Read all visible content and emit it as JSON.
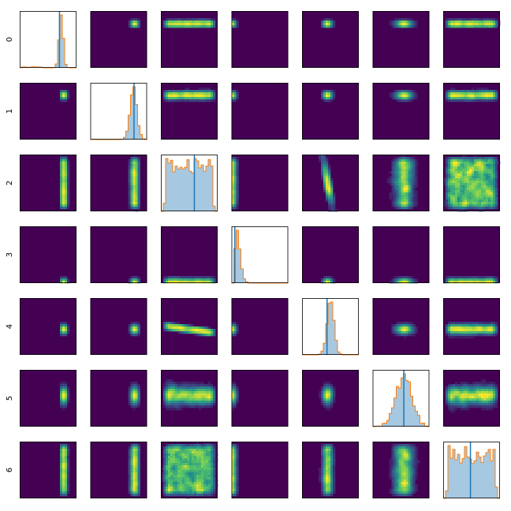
{
  "chart_data": {
    "type": "pairplot",
    "dimensions": 7,
    "row_labels": [
      "0",
      "1",
      "2",
      "3",
      "4",
      "5",
      "6"
    ],
    "colors": {
      "background": "#440154",
      "hist_fill": "#a6c8e0",
      "hist_outline": "#ff7f0e",
      "marker_line": "#1f77b4"
    },
    "diagonal": [
      {
        "shape": "spike",
        "center": 0.73,
        "spread": 0.035,
        "marker": 0.7,
        "tail": "left"
      },
      {
        "shape": "narrow",
        "center": 0.76,
        "spread": 0.06,
        "marker": 0.77
      },
      {
        "shape": "uniform",
        "center": 0.5,
        "spread": 0.85,
        "marker": 0.59
      },
      {
        "shape": "skewed",
        "center": 0.1,
        "spread": 0.05,
        "marker": 0.06
      },
      {
        "shape": "narrow",
        "center": 0.5,
        "spread": 0.06,
        "marker": 0.44
      },
      {
        "shape": "gaussian",
        "center": 0.55,
        "spread": 0.14,
        "marker": 0.55
      },
      {
        "shape": "uniform",
        "center": 0.5,
        "spread": 0.85,
        "marker": 0.48
      }
    ],
    "marginals": [
      {
        "center": 0.78,
        "spread": 0.02
      },
      {
        "center": 0.78,
        "spread": 0.05
      },
      {
        "center": 0.5,
        "spread": 0.42
      },
      {
        "center": 0.03,
        "spread": 0.03
      },
      {
        "center": 0.45,
        "spread": 0.07
      },
      {
        "center": 0.55,
        "spread": 0.15
      },
      {
        "center": 0.5,
        "spread": 0.42
      }
    ],
    "correlations": [
      {
        "i": 2,
        "j": 4,
        "rho": -0.92
      }
    ]
  }
}
